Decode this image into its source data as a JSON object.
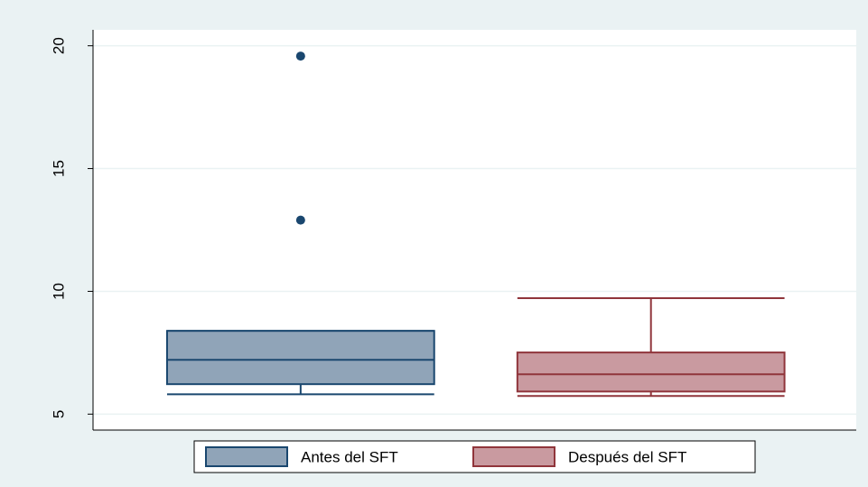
{
  "chart_data": {
    "type": "box",
    "series": [
      {
        "name": "Antes del SFT",
        "color": "#90a4b8",
        "stroke": "#1a476f",
        "whisker_low": 5.81,
        "q1": 6.22,
        "median": 7.21,
        "q3": 8.39,
        "whisker_high": 8.39,
        "outliers": [
          19.58,
          12.9
        ]
      },
      {
        "name": "Después del SFT",
        "color": "#c99aa0",
        "stroke": "#90353b",
        "whisker_low": 5.74,
        "q1": 5.92,
        "median": 6.62,
        "q3": 7.51,
        "whisker_high": 9.72,
        "outliers": []
      }
    ],
    "ylim": [
      4.35,
      20.65
    ],
    "yticks": [
      5,
      10,
      15,
      20
    ],
    "grid": true,
    "legend": "bottom"
  }
}
